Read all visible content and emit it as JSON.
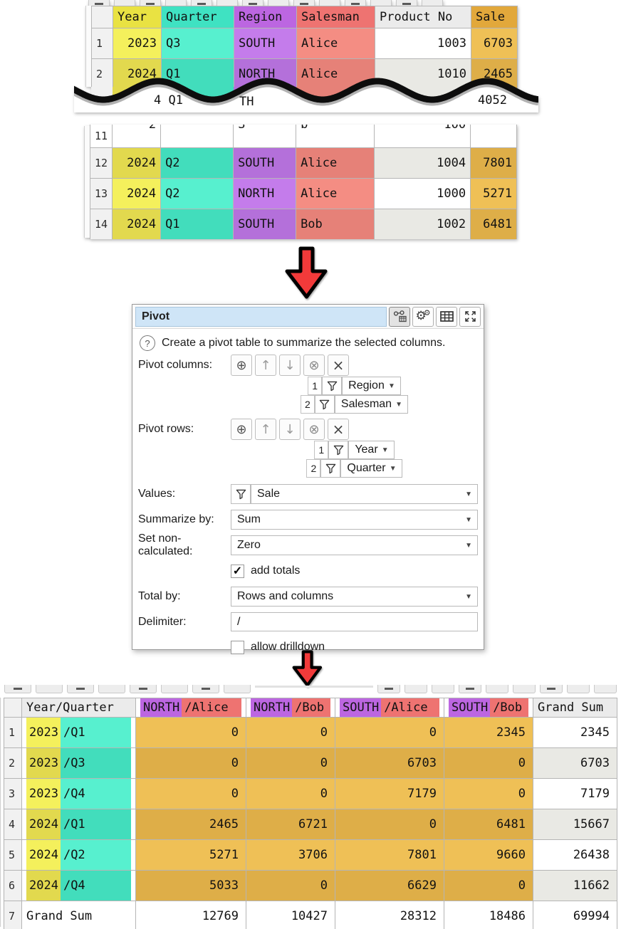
{
  "palette": {
    "col_year": {
      "header": "#e9e242",
      "odd": "#f4f05c",
      "even": "#e2d94e"
    },
    "col_quarter": {
      "header": "#3fe2c2",
      "odd": "#57f0cf",
      "even": "#42ddbc"
    },
    "col_region": {
      "header": "#bc66e1",
      "odd": "#c47ceb",
      "even": "#b470da"
    },
    "col_salesman": {
      "header": "#ee7371",
      "odd": "#f48d83",
      "even": "#e68178"
    },
    "col_sale": {
      "header": "#e2a83b",
      "odd": "#efc056",
      "even": "#deae48"
    },
    "col_plain": {
      "header": "#ebebeb",
      "odd": "#ffffff",
      "even": "#e9e9e4"
    },
    "rownum_bg": "#f1f1f1",
    "grid_border": "#b5b5b5",
    "arrow_red": "#f23a3a",
    "title_field_bg": "#cfe5f7"
  },
  "icons": {
    "add": "⊕",
    "move_up": "↑",
    "move_down": "↓",
    "remove": "⊗",
    "delete": "×",
    "dropdown": "▼",
    "check": "✓",
    "help": "?",
    "gear": "⚙",
    "funnel": "funnel-icon",
    "transform": "transform-icon",
    "settings": "settings-gears-icon",
    "table": "table-icon",
    "expand": "expand-icon"
  },
  "source_table": {
    "columns": [
      {
        "key": "year",
        "label": "Year",
        "color": "col_year",
        "align": "right"
      },
      {
        "key": "quarter",
        "label": "Quarter",
        "color": "col_quarter",
        "align": "left"
      },
      {
        "key": "region",
        "label": "Region",
        "color": "col_region",
        "align": "left"
      },
      {
        "key": "salesman",
        "label": "Salesman",
        "color": "col_salesman",
        "align": "left"
      },
      {
        "key": "product",
        "label": "Product No",
        "color": "col_plain",
        "align": "right"
      },
      {
        "key": "sale",
        "label": "Sale",
        "color": "col_sale",
        "align": "right"
      }
    ],
    "top_rows": [
      {
        "num": "1",
        "year": "2023",
        "quarter": "Q3",
        "region": "SOUTH",
        "salesman": "Alice",
        "product": "1003",
        "sale": "6703"
      },
      {
        "num": "2",
        "year": "2024",
        "quarter": "Q1",
        "region": "NORTH",
        "salesman": "Alice",
        "product": "1010",
        "sale": "2465"
      }
    ],
    "torn_fragments": [
      "4 Q1",
      "TH",
      "4052"
    ],
    "middle_partial_row": {
      "num": "11",
      "year": "2",
      "quarter": "",
      "region": "S",
      "salesman": "b",
      "product": "100",
      "sale": ""
    },
    "middle_rows": [
      {
        "num": "12",
        "year": "2024",
        "quarter": "Q2",
        "region": "SOUTH",
        "salesman": "Alice",
        "product": "1004",
        "sale": "7801"
      },
      {
        "num": "13",
        "year": "2024",
        "quarter": "Q2",
        "region": "NORTH",
        "salesman": "Alice",
        "product": "1000",
        "sale": "5271"
      },
      {
        "num": "14",
        "year": "2024",
        "quarter": "Q1",
        "region": "SOUTH",
        "salesman": "Bob",
        "product": "1002",
        "sale": "6481"
      }
    ]
  },
  "dialog": {
    "title": "Pivot",
    "help_text": "Create a pivot table to summarize the selected columns.",
    "pivot_columns": {
      "label": "Pivot columns:",
      "items": [
        {
          "index": "1",
          "value": "Region"
        },
        {
          "index": "2",
          "value": "Salesman"
        }
      ]
    },
    "pivot_rows": {
      "label": "Pivot rows:",
      "items": [
        {
          "index": "1",
          "value": "Year"
        },
        {
          "index": "2",
          "value": "Quarter"
        }
      ]
    },
    "values": {
      "label": "Values:",
      "value": "Sale"
    },
    "summarize_by": {
      "label": "Summarize by:",
      "value": "Sum"
    },
    "set_non_calculated": {
      "label": "Set non-calculated:",
      "value": "Zero"
    },
    "add_totals": {
      "label": "add totals",
      "checked": true
    },
    "total_by": {
      "label": "Total by:",
      "value": "Rows and columns"
    },
    "delimiter": {
      "label": "Delimiter:",
      "value": "/"
    },
    "allow_drilldown": {
      "label": "allow drilldown",
      "checked": false
    }
  },
  "result_table": {
    "row_header_label": "Year/Quarter",
    "value_headers": [
      {
        "region": "NORTH",
        "rest": "/Alice"
      },
      {
        "region": "NORTH",
        "rest": "/Bob"
      },
      {
        "region": "SOUTH",
        "rest": "/Alice"
      },
      {
        "region": "SOUTH",
        "rest": "/Bob"
      }
    ],
    "total_header": "Grand Sum",
    "rows": [
      {
        "num": "1",
        "year": "2023",
        "quarter": "/Q1",
        "values": [
          "0",
          "0",
          "0",
          "2345"
        ],
        "total": "2345"
      },
      {
        "num": "2",
        "year": "2023",
        "quarter": "/Q3",
        "values": [
          "0",
          "0",
          "6703",
          "0"
        ],
        "total": "6703"
      },
      {
        "num": "3",
        "year": "2023",
        "quarter": "/Q4",
        "values": [
          "0",
          "0",
          "7179",
          "0"
        ],
        "total": "7179"
      },
      {
        "num": "4",
        "year": "2024",
        "quarter": "/Q1",
        "values": [
          "2465",
          "6721",
          "0",
          "6481"
        ],
        "total": "15667"
      },
      {
        "num": "5",
        "year": "2024",
        "quarter": "/Q2",
        "values": [
          "5271",
          "3706",
          "7801",
          "9660"
        ],
        "total": "26438"
      },
      {
        "num": "6",
        "year": "2024",
        "quarter": "/Q4",
        "values": [
          "5033",
          "0",
          "6629",
          "0"
        ],
        "total": "11662"
      }
    ],
    "total_row": {
      "num": "7",
      "label": "Grand Sum",
      "values": [
        "12769",
        "10427",
        "28312",
        "18486"
      ],
      "total": "69994"
    }
  }
}
